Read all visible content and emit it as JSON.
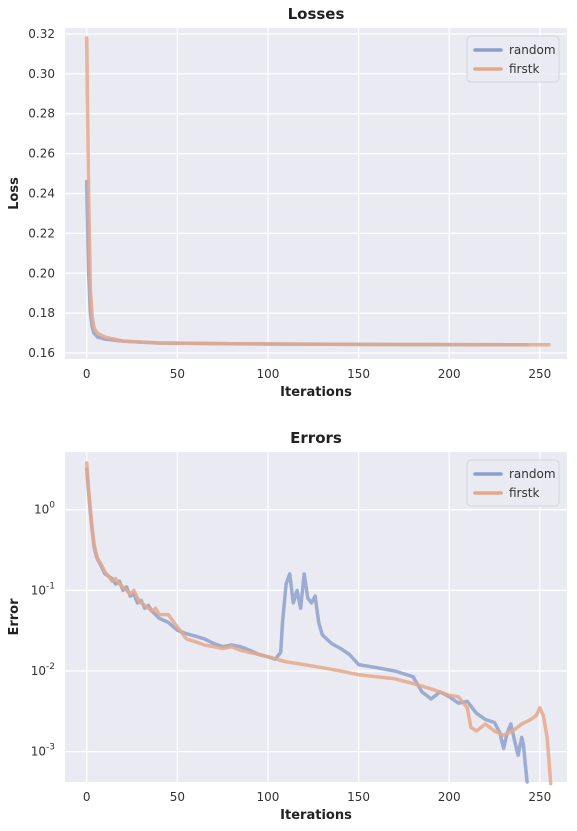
{
  "chart_data": [
    {
      "type": "line",
      "title": "Losses",
      "xlabel": "Iterations",
      "ylabel": "Loss",
      "yscale": "linear",
      "xlim": [
        -12,
        265
      ],
      "ylim": [
        0.157,
        0.323
      ],
      "xticks": [
        0,
        50,
        100,
        150,
        200,
        250
      ],
      "xtick_labels": [
        "0",
        "50",
        "100",
        "150",
        "200",
        "250"
      ],
      "yticks": [
        0.16,
        0.18,
        0.2,
        0.22,
        0.24,
        0.26,
        0.28,
        0.3,
        0.32
      ],
      "ytick_labels": [
        "0.16",
        "0.18",
        "0.20",
        "0.22",
        "0.24",
        "0.26",
        "0.28",
        "0.30",
        "0.32"
      ],
      "grid": true,
      "legend": "top-right",
      "series": [
        {
          "name": "random",
          "color": "#8da0cb",
          "x": [
            0,
            1,
            2,
            3,
            4,
            5,
            6,
            8,
            10,
            15,
            20,
            30,
            40,
            60,
            80,
            100,
            150,
            200,
            243
          ],
          "y": [
            0.246,
            0.2,
            0.18,
            0.173,
            0.17,
            0.169,
            0.168,
            0.1675,
            0.167,
            0.1665,
            0.166,
            0.1655,
            0.165,
            0.1648,
            0.1646,
            0.1645,
            0.1643,
            0.1642,
            0.1641
          ]
        },
        {
          "name": "firstk",
          "color": "#e5a88a",
          "x": [
            0,
            1,
            2,
            3,
            4,
            5,
            6,
            8,
            10,
            15,
            20,
            30,
            40,
            60,
            80,
            100,
            150,
            200,
            255
          ],
          "y": [
            0.318,
            0.24,
            0.192,
            0.178,
            0.173,
            0.171,
            0.17,
            0.169,
            0.168,
            0.167,
            0.166,
            0.1655,
            0.165,
            0.1648,
            0.1646,
            0.1645,
            0.1643,
            0.1642,
            0.1641
          ]
        }
      ]
    },
    {
      "type": "line",
      "title": "Errors",
      "xlabel": "Iterations",
      "ylabel": "Error",
      "yscale": "log",
      "xlim": [
        -12,
        265
      ],
      "ylim": [
        0.00042,
        5.2
      ],
      "xticks": [
        0,
        50,
        100,
        150,
        200,
        250
      ],
      "xtick_labels": [
        "0",
        "50",
        "100",
        "150",
        "200",
        "250"
      ],
      "yticks": [
        0.001,
        0.01,
        0.1,
        1
      ],
      "ytick_labels": [
        [
          "10",
          "-3"
        ],
        [
          "10",
          "-2"
        ],
        [
          "10",
          "-1"
        ],
        [
          "10",
          "0"
        ]
      ],
      "grid": true,
      "legend": "top-right",
      "series": [
        {
          "name": "random",
          "color": "#8da0cb",
          "x": [
            0,
            1,
            2,
            3,
            4,
            5,
            6,
            8,
            10,
            12,
            14,
            16,
            18,
            20,
            22,
            24,
            26,
            28,
            30,
            32,
            34,
            36,
            38,
            40,
            45,
            50,
            55,
            60,
            65,
            70,
            75,
            80,
            85,
            90,
            95,
            100,
            104,
            107,
            108,
            110,
            112,
            114,
            116,
            118,
            120,
            122,
            124,
            126,
            128,
            130,
            135,
            140,
            145,
            150,
            160,
            170,
            180,
            185,
            190,
            195,
            200,
            205,
            210,
            215,
            220,
            225,
            228,
            230,
            232,
            234,
            236,
            238,
            240,
            241,
            242,
            243
          ],
          "y": [
            3.2,
            1.6,
            0.9,
            0.55,
            0.35,
            0.28,
            0.24,
            0.2,
            0.16,
            0.15,
            0.14,
            0.12,
            0.13,
            0.1,
            0.11,
            0.085,
            0.09,
            0.07,
            0.075,
            0.06,
            0.065,
            0.055,
            0.05,
            0.045,
            0.04,
            0.032,
            0.029,
            0.027,
            0.025,
            0.022,
            0.02,
            0.021,
            0.02,
            0.018,
            0.016,
            0.015,
            0.014,
            0.017,
            0.04,
            0.12,
            0.16,
            0.07,
            0.1,
            0.06,
            0.16,
            0.08,
            0.07,
            0.085,
            0.04,
            0.028,
            0.022,
            0.019,
            0.016,
            0.012,
            0.011,
            0.01,
            0.0085,
            0.0055,
            0.0045,
            0.0055,
            0.0048,
            0.004,
            0.0042,
            0.003,
            0.0025,
            0.0023,
            0.0017,
            0.0011,
            0.0017,
            0.0022,
            0.0014,
            0.0009,
            0.0015,
            0.0012,
            0.0007,
            0.00042
          ]
        },
        {
          "name": "firstk",
          "color": "#e5a88a",
          "x": [
            0,
            1,
            2,
            3,
            4,
            5,
            6,
            8,
            10,
            12,
            14,
            16,
            18,
            20,
            22,
            24,
            26,
            28,
            30,
            32,
            34,
            36,
            38,
            40,
            45,
            50,
            55,
            60,
            65,
            70,
            75,
            80,
            85,
            90,
            95,
            100,
            110,
            120,
            130,
            140,
            150,
            160,
            170,
            180,
            190,
            200,
            205,
            210,
            212,
            215,
            220,
            225,
            230,
            235,
            240,
            245,
            248,
            250,
            252,
            254,
            255,
            256
          ],
          "y": [
            3.8,
            1.8,
            1.0,
            0.6,
            0.38,
            0.3,
            0.25,
            0.21,
            0.17,
            0.15,
            0.13,
            0.14,
            0.12,
            0.11,
            0.1,
            0.09,
            0.1,
            0.08,
            0.07,
            0.065,
            0.06,
            0.055,
            0.06,
            0.05,
            0.05,
            0.035,
            0.025,
            0.023,
            0.021,
            0.02,
            0.019,
            0.02,
            0.018,
            0.017,
            0.016,
            0.015,
            0.013,
            0.012,
            0.011,
            0.01,
            0.009,
            0.0085,
            0.008,
            0.007,
            0.006,
            0.005,
            0.0048,
            0.0035,
            0.002,
            0.0018,
            0.0022,
            0.0018,
            0.0016,
            0.0018,
            0.0022,
            0.0025,
            0.0028,
            0.0035,
            0.0028,
            0.0015,
            0.0008,
            0.0004
          ]
        }
      ]
    }
  ]
}
